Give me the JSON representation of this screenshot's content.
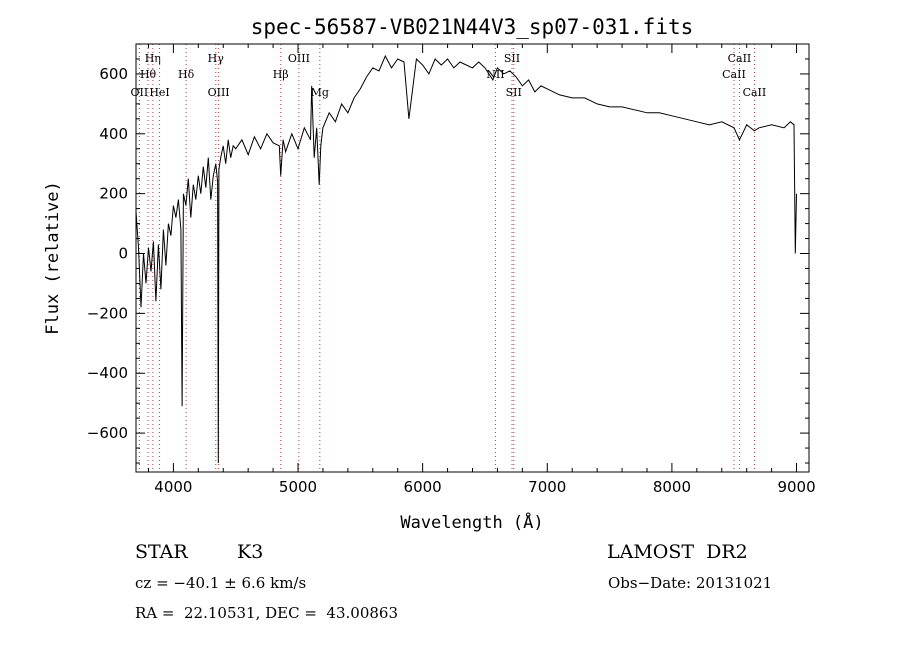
{
  "chart_data": {
    "type": "line",
    "title": "spec-56587-VB021N44V3_sp07-031.fits",
    "xlabel": "Wavelength (Å)",
    "ylabel": "Flux (relative)",
    "xlim": [
      3700,
      9100
    ],
    "ylim": [
      -730,
      700
    ],
    "xticks": [
      "4000",
      "5000",
      "6000",
      "7000",
      "8000",
      "9000"
    ],
    "yticks": [
      "600",
      "400",
      "200",
      "0",
      "−200",
      "−400",
      "−600"
    ],
    "xtick_values": [
      4000,
      5000,
      6000,
      7000,
      8000,
      9000
    ],
    "ytick_values": [
      600,
      400,
      200,
      0,
      -200,
      -400,
      -600
    ],
    "grid": false,
    "series": [
      {
        "x": [
          3700,
          3720,
          3740,
          3760,
          3780,
          3800,
          3820,
          3840,
          3860,
          3880,
          3900,
          3920,
          3940,
          3960,
          3980,
          4000,
          4020,
          4040,
          4060,
          4070,
          4080,
          4100,
          4120,
          4140,
          4160,
          4180,
          4200,
          4220,
          4240,
          4260,
          4280,
          4300,
          4320,
          4340,
          4355,
          4360,
          4365,
          4380,
          4400,
          4420,
          4440,
          4460,
          4480,
          4500,
          4550,
          4600,
          4650,
          4700,
          4750,
          4800,
          4850,
          4861,
          4880,
          4900,
          4950,
          5000,
          5050,
          5100,
          5110,
          5130,
          5150,
          5170,
          5183,
          5200,
          5250,
          5300,
          5350,
          5400,
          5450,
          5500,
          5550,
          5600,
          5650,
          5700,
          5750,
          5800,
          5850,
          5890,
          5950,
          6000,
          6050,
          6100,
          6150,
          6200,
          6250,
          6300,
          6350,
          6400,
          6450,
          6500,
          6563,
          6600,
          6650,
          6700,
          6750,
          6800,
          6850,
          6900,
          6950,
          7000,
          7100,
          7200,
          7300,
          7400,
          7500,
          7600,
          7700,
          7800,
          7900,
          8000,
          8100,
          8200,
          8300,
          8400,
          8498,
          8542,
          8600,
          8662,
          8700,
          8800,
          8900,
          8950,
          8980,
          8990,
          9000
        ],
        "y": [
          140,
          20,
          -180,
          0,
          -100,
          20,
          -60,
          40,
          -160,
          30,
          -120,
          80,
          -40,
          100,
          60,
          160,
          120,
          180,
          80,
          -510,
          200,
          160,
          250,
          120,
          230,
          180,
          260,
          200,
          290,
          220,
          320,
          180,
          260,
          300,
          240,
          -700,
          280,
          320,
          360,
          300,
          380,
          320,
          360,
          350,
          380,
          330,
          390,
          350,
          400,
          370,
          360,
          260,
          380,
          340,
          400,
          350,
          420,
          380,
          560,
          320,
          420,
          230,
          360,
          420,
          470,
          440,
          500,
          470,
          520,
          550,
          590,
          620,
          610,
          660,
          620,
          650,
          640,
          450,
          650,
          630,
          600,
          650,
          630,
          650,
          620,
          640,
          630,
          620,
          640,
          620,
          580,
          620,
          600,
          610,
          590,
          560,
          580,
          540,
          560,
          550,
          530,
          520,
          520,
          500,
          490,
          490,
          480,
          470,
          470,
          460,
          450,
          440,
          430,
          440,
          420,
          380,
          430,
          410,
          420,
          430,
          420,
          440,
          430,
          0,
          200
        ]
      }
    ],
    "line_markers": [
      {
        "label": "OII",
        "x": 3727,
        "row": 3
      },
      {
        "label": "Hη",
        "x": 3835,
        "row": 1
      },
      {
        "label": "Hθ",
        "x": 3797,
        "row": 2
      },
      {
        "label": "HeI",
        "x": 3889,
        "row": 3
      },
      {
        "label": "Hδ",
        "x": 4102,
        "row": 2
      },
      {
        "label": "Hγ",
        "x": 4340,
        "row": 1
      },
      {
        "label": "OIII",
        "x": 4363,
        "row": 3
      },
      {
        "label": "Hβ",
        "x": 4861,
        "row": 2
      },
      {
        "label": "OIII",
        "x": 5007,
        "row": 1
      },
      {
        "label": "Mg",
        "x": 5175,
        "row": 3
      },
      {
        "label": "SII",
        "x": 6717,
        "row": 1
      },
      {
        "label": "NII",
        "x": 6584,
        "row": 2
      },
      {
        "label": "SII",
        "x": 6731,
        "row": 3
      },
      {
        "label": "CaII",
        "x": 8542,
        "row": 1
      },
      {
        "label": "CaII",
        "x": 8498,
        "row": 2
      },
      {
        "label": "CaII",
        "x": 8662,
        "row": 3
      }
    ]
  },
  "info": {
    "object_class": "STAR",
    "subclass": "K3",
    "survey": "LAMOST  DR2",
    "redshift": "cz = −40.1 ± 6.6 km/s",
    "obs_date": "Obs−Date: 20131021",
    "coords": "RA =  22.10531, DEC =  43.00863"
  }
}
